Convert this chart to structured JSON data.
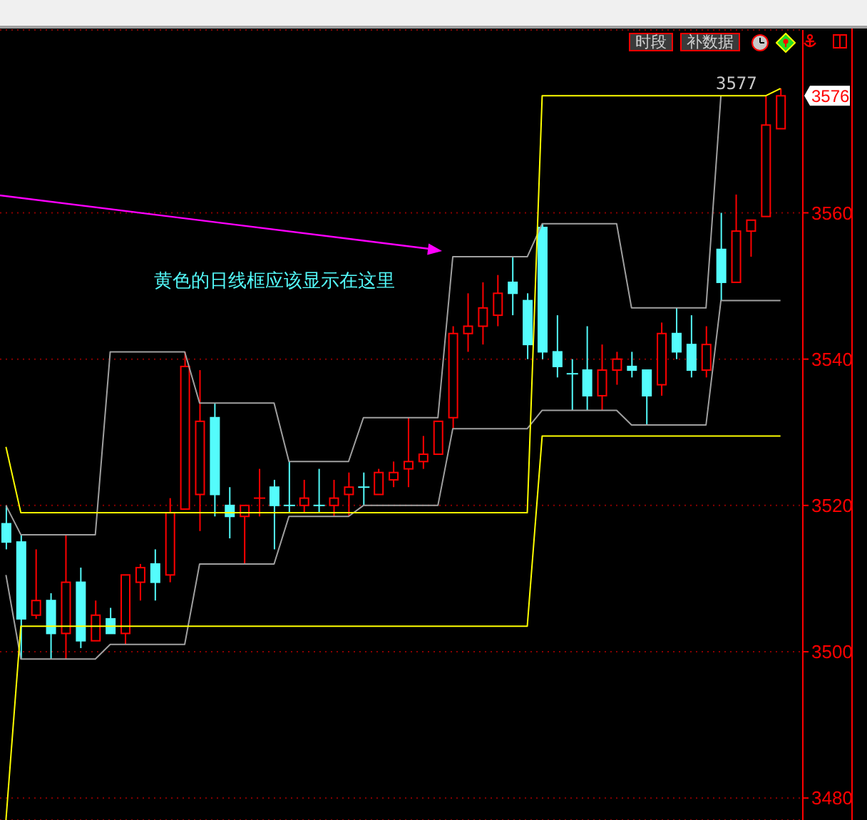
{
  "chart_data": {
    "type": "candlestick",
    "categories": [
      null,
      null,
      null,
      null,
      null,
      null,
      null,
      null,
      null,
      null,
      null,
      null,
      null,
      null,
      null,
      null,
      null,
      null,
      null,
      null,
      null,
      null,
      null,
      null,
      null,
      null,
      null,
      null,
      null,
      null,
      null,
      null,
      null,
      null,
      null,
      null,
      null,
      null,
      null,
      null,
      null,
      null,
      null,
      null,
      null,
      null,
      null,
      null,
      null,
      null,
      null,
      null,
      null
    ],
    "ohlc": [
      [
        3517.5,
        3520,
        3514,
        3515
      ],
      [
        3515,
        3516,
        3499,
        3504.5
      ],
      [
        3505,
        3514,
        3504.5,
        3507
      ],
      [
        3507,
        3508,
        3499,
        3502.5
      ],
      [
        3502.5,
        3516,
        3499,
        3509.5
      ],
      [
        3509.5,
        3511.5,
        3500.5,
        3501.5
      ],
      [
        3501.5,
        3507,
        3501.5,
        3505
      ],
      [
        3504.5,
        3506,
        3502.5,
        3502.5
      ],
      [
        3502.5,
        3510.5,
        3501,
        3510.5
      ],
      [
        3509.5,
        3512,
        3507,
        3511.5
      ],
      [
        3512,
        3514,
        3507,
        3509.5
      ],
      [
        3510.5,
        3521,
        3509.5,
        3519
      ],
      [
        3519.5,
        3541,
        3519.5,
        3539
      ],
      [
        3521.5,
        3538.5,
        3516.5,
        3531.5
      ],
      [
        3532,
        3534,
        3518.5,
        3521.5
      ],
      [
        3520,
        3522.5,
        3515.5,
        3518.5
      ],
      [
        3518.5,
        3520,
        3512,
        3520
      ],
      [
        3521,
        3525,
        3518.5,
        3521
      ],
      [
        3522.5,
        3523.5,
        3514,
        3520
      ],
      [
        3520,
        3526,
        3519,
        3520
      ],
      [
        3520,
        3523.5,
        3519,
        3521
      ],
      [
        3520,
        3525,
        3519,
        3520
      ],
      [
        3520,
        3523.5,
        3518.5,
        3521
      ],
      [
        3521.5,
        3524.5,
        3518.5,
        3522.5
      ],
      [
        3522.5,
        3524.5,
        3520,
        3522.5
      ],
      [
        3521.5,
        3525,
        3521.5,
        3524.5
      ],
      [
        3523.5,
        3526,
        3522.5,
        3524.5
      ],
      [
        3525,
        3532,
        3522.5,
        3526
      ],
      [
        3526,
        3529.5,
        3525,
        3527
      ],
      [
        3527,
        3531.5,
        3527,
        3531.5
      ],
      [
        3532,
        3544.5,
        3530.5,
        3543.5
      ],
      [
        3543.5,
        3549,
        3541,
        3544.5
      ],
      [
        3544.5,
        3550.5,
        3542,
        3547
      ],
      [
        3546,
        3551.5,
        3544.5,
        3549
      ],
      [
        3550.5,
        3554,
        3546,
        3549
      ],
      [
        3548,
        3549,
        3540,
        3542
      ],
      [
        3558,
        3558.5,
        3540,
        3541
      ],
      [
        3541,
        3546,
        3537.5,
        3539
      ],
      [
        3538,
        3540,
        3533,
        3538
      ],
      [
        3538.5,
        3544.5,
        3533,
        3535
      ],
      [
        3535,
        3542,
        3533,
        3538.5
      ],
      [
        3538.5,
        3541,
        3536.5,
        3540
      ],
      [
        3539,
        3541,
        3537.5,
        3538.5
      ],
      [
        3538.5,
        3538.5,
        3531,
        3535
      ],
      [
        3536.5,
        3545,
        3535,
        3543.5
      ],
      [
        3543.5,
        3547,
        3540,
        3541
      ],
      [
        3542,
        3546,
        3537.5,
        3538.5
      ],
      [
        3538.5,
        3544.5,
        3537.5,
        3542
      ],
      [
        3555,
        3560,
        3548,
        3550.5
      ],
      [
        3550.5,
        3562.5,
        3550.5,
        3557.5
      ],
      [
        3557.5,
        3559,
        3554,
        3559
      ],
      [
        3559.5,
        3576,
        3559.5,
        3572
      ],
      [
        3571.5,
        3577,
        3571.5,
        3576
      ]
    ],
    "colors": [
      "#54fcfc",
      "#54fcfc",
      "#ff0000",
      "#54fcfc",
      "#ff0000",
      "#54fcfc",
      "#ff0000",
      "#54fcfc",
      "#ff0000",
      "#ff0000",
      "#54fcfc",
      "#ff0000",
      "#ff0000",
      "#ff0000",
      "#54fcfc",
      "#54fcfc",
      "#ff0000",
      "#ff0000",
      "#54fcfc",
      "#54fcfc",
      "#ff0000",
      "#54fcfc",
      "#ff0000",
      "#ff0000",
      "#54fcfc",
      "#ff0000",
      "#ff0000",
      "#ff0000",
      "#ff0000",
      "#ff0000",
      "#ff0000",
      "#ff0000",
      "#ff0000",
      "#ff0000",
      "#54fcfc",
      "#54fcfc",
      "#54fcfc",
      "#54fcfc",
      "#54fcfc",
      "#54fcfc",
      "#ff0000",
      "#ff0000",
      "#54fcfc",
      "#54fcfc",
      "#ff0000",
      "#54fcfc",
      "#54fcfc",
      "#ff0000",
      "#54fcfc",
      "#ff0000",
      "#ff0000",
      "#ff0000",
      "#ff0000"
    ],
    "series": [
      {
        "type": "line",
        "color": "#a0a0a0",
        "values": [
          3520,
          3516,
          3516,
          3516,
          3516,
          3516,
          3516,
          3541,
          3541,
          3541,
          3541,
          3541,
          3541,
          3534,
          3534,
          3534,
          3534,
          3534,
          3534,
          3526,
          3526,
          3526,
          3526,
          3526,
          3532,
          3532,
          3532,
          3532,
          3532,
          3532,
          3554,
          3554,
          3554,
          3554,
          3554,
          3554,
          3558.5,
          3558.5,
          3558.5,
          3558.5,
          3558.5,
          3558.5,
          3547,
          3547,
          3547,
          3547,
          3547,
          3547,
          3576,
          null,
          null,
          null,
          null
        ]
      },
      {
        "type": "line",
        "color": "#a0a0a0",
        "values": [
          3510.5,
          3499,
          3499,
          3499,
          3499,
          3499,
          3499,
          3501,
          3501,
          3501,
          3501,
          3501,
          3501,
          3512,
          3512,
          3512,
          3512,
          3512,
          3512,
          3518.5,
          3518.5,
          3518.5,
          3518.5,
          3518.5,
          3520,
          3520,
          3520,
          3520,
          3520,
          3520,
          3530.5,
          3530.5,
          3530.5,
          3530.5,
          3530.5,
          3530.5,
          3533,
          3533,
          3533,
          3533,
          3533,
          3533,
          3531,
          3531,
          3531,
          3531,
          3531,
          3531,
          3548,
          3548,
          3548,
          3548,
          3548
        ]
      },
      {
        "type": "line",
        "color": "#ffff00",
        "values": [
          3528,
          3519,
          3519,
          3519,
          3519,
          3519,
          3519,
          3519,
          3519,
          3519,
          3519,
          3519,
          3519,
          3519,
          3519,
          3519,
          3519,
          3519,
          3519,
          3519,
          3519,
          3519,
          3519,
          3519,
          3519,
          3519,
          3519,
          3519,
          3519,
          3519,
          3519,
          3519,
          3519,
          3519,
          3519,
          3519,
          3576,
          3576,
          3576,
          3576,
          3576,
          3576,
          3576,
          3576,
          3576,
          3576,
          3576,
          3576,
          3576,
          3576,
          3576,
          3576,
          3577
        ]
      },
      {
        "type": "line",
        "color": "#ffff00",
        "values": [
          3477,
          3503.5,
          3503.5,
          3503.5,
          3503.5,
          3503.5,
          3503.5,
          3503.5,
          3503.5,
          3503.5,
          3503.5,
          3503.5,
          3503.5,
          3503.5,
          3503.5,
          3503.5,
          3503.5,
          3503.5,
          3503.5,
          3503.5,
          3503.5,
          3503.5,
          3503.5,
          3503.5,
          3503.5,
          3503.5,
          3503.5,
          3503.5,
          3503.5,
          3503.5,
          3503.5,
          3503.5,
          3503.5,
          3503.5,
          3503.5,
          3503.5,
          3529.5,
          3529.5,
          3529.5,
          3529.5,
          3529.5,
          3529.5,
          3529.5,
          3529.5,
          3529.5,
          3529.5,
          3529.5,
          3529.5,
          3529.5,
          3529.5,
          3529.5,
          3529.5,
          3529.5
        ]
      }
    ],
    "ylim": [
      3477,
      3585
    ],
    "yticks": [
      3480,
      3500,
      3520,
      3540,
      3560
    ],
    "grid": "y",
    "tick_labels": "y",
    "annotations": [
      "时段",
      "补数据",
      "黄色的日线框应该显示在这里",
      {
        "text": "3577",
        "y": 3577
      },
      "3576"
    ]
  }
}
